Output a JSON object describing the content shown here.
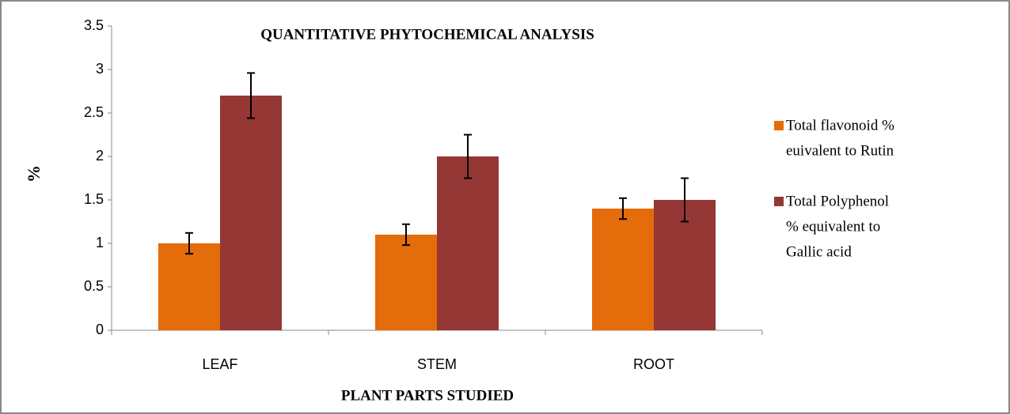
{
  "chart_data": {
    "type": "bar",
    "title": "QUANTITATIVE PHYTOCHEMICAL ANALYSIS",
    "x_label": "PLANT PARTS STUDIED",
    "y_label": "%",
    "categories": [
      "LEAF",
      "STEM",
      "ROOT"
    ],
    "series": [
      {
        "name": [
          "Total flavonoid %",
          "euivalent to Rutin"
        ],
        "color": "#e46c0a",
        "values": [
          1.0,
          1.1,
          1.4
        ],
        "errors": [
          0.12,
          0.12,
          0.12
        ]
      },
      {
        "name": [
          "Total Polyphenol",
          "% equivalent to",
          "Gallic acid"
        ],
        "color": "#953735",
        "values": [
          2.7,
          2.0,
          1.5
        ],
        "errors": [
          0.26,
          0.25,
          0.25
        ]
      }
    ],
    "ylim": [
      0,
      3.5
    ],
    "yticks": [
      0,
      0.5,
      1,
      1.5,
      2,
      2.5,
      3,
      3.5
    ],
    "legend": "right",
    "grid": false
  }
}
